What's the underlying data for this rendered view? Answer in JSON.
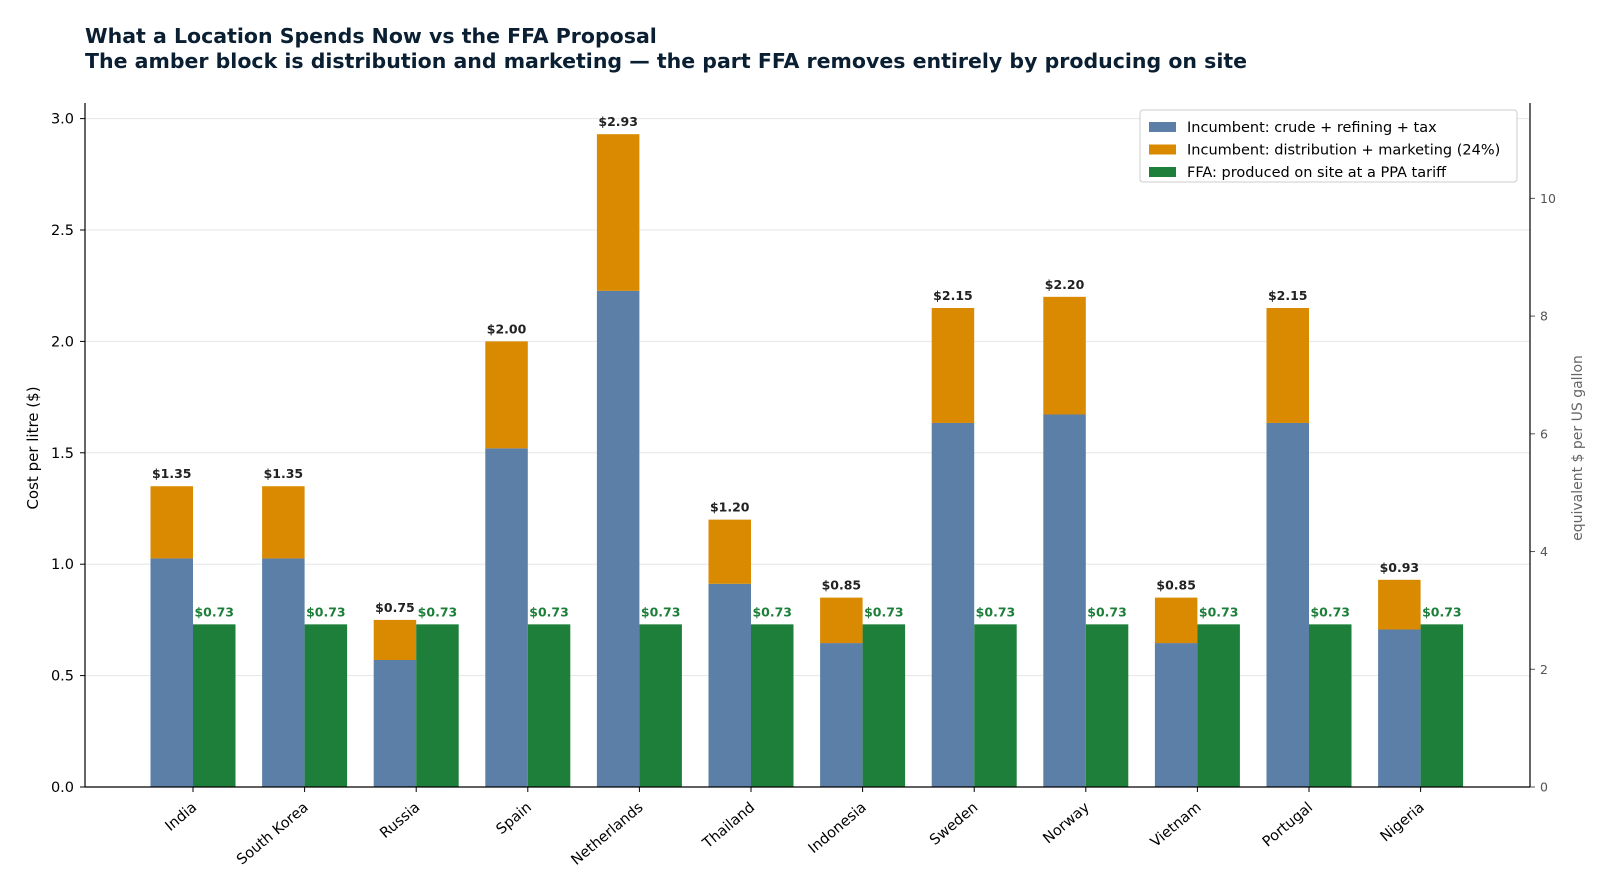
{
  "chart_data": {
    "type": "bar",
    "title": "What a Location Spends Now vs the FFA Proposal",
    "subtitle": "The amber block is distribution and marketing — the part FFA removes entirely by producing on site",
    "ylabel": "Cost per litre ($)",
    "ylabel_right": "equivalent $ per US gallon",
    "ylim": [
      0,
      3.07
    ],
    "yticks": [
      0.0,
      0.5,
      1.0,
      1.5,
      2.0,
      2.5,
      3.0
    ],
    "ytick_labels": [
      "0.0",
      "0.5",
      "1.0",
      "1.5",
      "2.0",
      "2.5",
      "3.0"
    ],
    "ylim_right": [
      0,
      11.62
    ],
    "yticks_right": [
      0,
      2,
      4,
      6,
      8,
      10
    ],
    "ytick_labels_right": [
      "0",
      "2",
      "4",
      "6",
      "8",
      "10"
    ],
    "grid": "horizontal",
    "legend_position": "top-right",
    "categories": [
      "India",
      "South Korea",
      "Russia",
      "Spain",
      "Netherlands",
      "Thailand",
      "Indonesia",
      "Sweden",
      "Norway",
      "Vietnam",
      "Portugal",
      "Nigeria"
    ],
    "series": [
      {
        "name": "Incumbent: crude + refining + tax",
        "color": "#5b7fa6",
        "stack": "incumbent",
        "values": [
          1.026,
          1.026,
          0.57,
          1.52,
          2.227,
          0.912,
          0.646,
          1.634,
          1.672,
          0.646,
          1.634,
          0.707
        ]
      },
      {
        "name": "Incumbent: distribution + marketing (24%)",
        "color": "#d98a00",
        "stack": "incumbent",
        "values": [
          0.324,
          0.324,
          0.18,
          0.48,
          0.703,
          0.288,
          0.204,
          0.516,
          0.528,
          0.204,
          0.516,
          0.223
        ]
      },
      {
        "name": "FFA: produced on site at a PPA tariff",
        "color": "#1d7f3a",
        "stack": "ffa",
        "values": [
          0.73,
          0.73,
          0.73,
          0.73,
          0.73,
          0.73,
          0.73,
          0.73,
          0.73,
          0.73,
          0.73,
          0.73
        ]
      }
    ],
    "incumbent_total_labels": [
      "$1.35",
      "$1.35",
      "$0.75",
      "$2.00",
      "$2.93",
      "$1.20",
      "$0.85",
      "$2.15",
      "$2.20",
      "$0.85",
      "$2.15",
      "$0.93"
    ],
    "ffa_labels": [
      "$0.73",
      "$0.73",
      "$0.73",
      "$0.73",
      "$0.73",
      "$0.73",
      "$0.73",
      "$0.73",
      "$0.73",
      "$0.73",
      "$0.73",
      "$0.73"
    ],
    "colors": {
      "title": "#0b1f33",
      "incumbent_label": "#222222",
      "ffa_label": "#1d7f3a",
      "grid": "#e6e6e6"
    }
  }
}
